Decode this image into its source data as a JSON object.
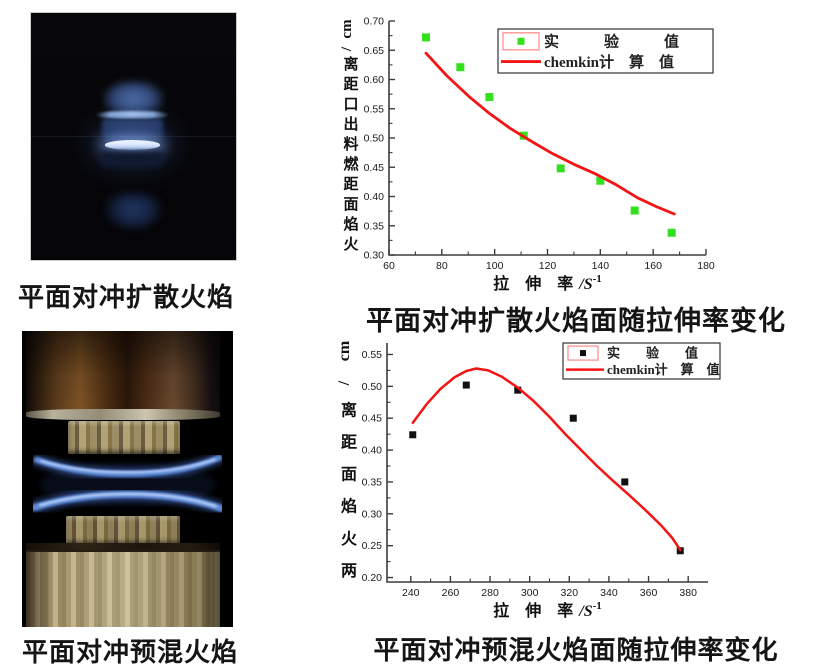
{
  "captions": {
    "top_left": "平面对冲扩散火焰",
    "top_right": "平面对冲扩散火焰面随拉伸率变化",
    "bottom_left": "平面对冲预混火焰",
    "bottom_right": "平面对冲预混火焰面随拉伸率变化"
  },
  "colors": {
    "experimental_green": "#33e01e",
    "experimental_black": "#111111",
    "chemkin_red": "#f41414",
    "legend_frame_pink": "#ff9090",
    "axis": "#3c3c3c",
    "tick_text": "#1a1a1a"
  },
  "chart_data": [
    {
      "type": "scatter",
      "title": "平面对冲扩散火焰面随拉伸率变化",
      "xlabel": "拉 伸 率",
      "xunit": "/S",
      "xunit_sup": "-1",
      "ylabel": "火焰面距燃料出口距离/cm",
      "xlim": [
        60,
        180
      ],
      "ylim": [
        0.3,
        0.7
      ],
      "xticks": [
        60,
        80,
        100,
        120,
        140,
        160,
        180
      ],
      "ytick_labels": [
        "0.30",
        "0.35",
        "0.40",
        "0.45",
        "0.50",
        "0.55",
        "0.60",
        "0.65",
        "0.70"
      ],
      "grid": false,
      "legend_position": "top-right-inside",
      "legend": [
        {
          "label": "实　　　验　　　值",
          "marker": "square",
          "color": "#33e01e"
        },
        {
          "label": "chemkin计　算　值",
          "marker": "line",
          "color": "#f41414"
        }
      ],
      "series": [
        {
          "name": "实验值",
          "type": "scatter",
          "color": "#33e01e",
          "points": [
            [
              74,
              0.672
            ],
            [
              87,
              0.621
            ],
            [
              98,
              0.57
            ],
            [
              111,
              0.504
            ],
            [
              125,
              0.448
            ],
            [
              140,
              0.427
            ],
            [
              153,
              0.376
            ],
            [
              167,
              0.338
            ]
          ]
        },
        {
          "name": "chemkin计算值",
          "type": "line",
          "color": "#f41414",
          "points": [
            [
              74,
              0.645
            ],
            [
              82,
              0.606
            ],
            [
              90,
              0.572
            ],
            [
              98,
              0.542
            ],
            [
              106,
              0.516
            ],
            [
              114,
              0.494
            ],
            [
              122,
              0.473
            ],
            [
              130,
              0.455
            ],
            [
              138,
              0.439
            ],
            [
              146,
              0.42
            ],
            [
              154,
              0.398
            ],
            [
              161,
              0.383
            ],
            [
              168,
              0.37
            ]
          ]
        }
      ]
    },
    {
      "type": "scatter",
      "title": "平面对冲预混火焰面随拉伸率变化",
      "xlabel": "拉 伸 率",
      "xunit": "/S",
      "xunit_sup": "-1",
      "ylabel": "两火焰面距离/cm",
      "xlim": [
        228,
        390
      ],
      "ylim": [
        0.193,
        0.568
      ],
      "xticks": [
        240,
        260,
        280,
        300,
        320,
        340,
        360,
        380
      ],
      "ytick_labels": [
        "0.20",
        "0.25",
        "0.30",
        "0.35",
        "0.40",
        "0.45",
        "0.50",
        "0.55"
      ],
      "grid": false,
      "legend_position": "top-right-inside",
      "legend": [
        {
          "label": "实　　验　　值",
          "marker": "square",
          "color": "#111111"
        },
        {
          "label": "chemkin计　算　值",
          "marker": "line",
          "color": "#f41414"
        }
      ],
      "series": [
        {
          "name": "实验值",
          "type": "scatter",
          "color": "#111111",
          "points": [
            [
              241,
              0.424
            ],
            [
              268,
              0.502
            ],
            [
              294,
              0.494
            ],
            [
              322,
              0.45
            ],
            [
              348,
              0.35
            ],
            [
              376,
              0.242
            ]
          ]
        },
        {
          "name": "chemkin计算值",
          "type": "line",
          "color": "#f41414",
          "points": [
            [
              241,
              0.443
            ],
            [
              248,
              0.472
            ],
            [
              255,
              0.496
            ],
            [
              262,
              0.514
            ],
            [
              268,
              0.524
            ],
            [
              273,
              0.528
            ],
            [
              279,
              0.525
            ],
            [
              286,
              0.515
            ],
            [
              294,
              0.498
            ],
            [
              302,
              0.477
            ],
            [
              310,
              0.452
            ],
            [
              318,
              0.425
            ],
            [
              326,
              0.4
            ],
            [
              334,
              0.375
            ],
            [
              342,
              0.352
            ],
            [
              350,
              0.33
            ],
            [
              358,
              0.307
            ],
            [
              366,
              0.283
            ],
            [
              372,
              0.262
            ],
            [
              376,
              0.243
            ]
          ]
        }
      ]
    }
  ]
}
